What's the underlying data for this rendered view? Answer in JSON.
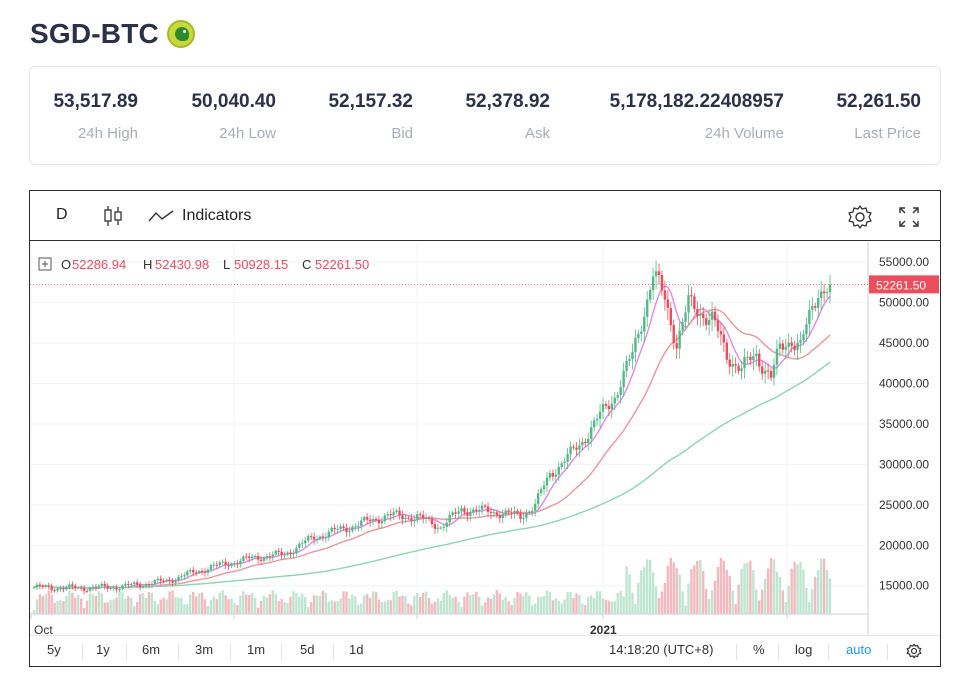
{
  "header": {
    "title": "SGD-BTC",
    "icon": "coin-logo-icon"
  },
  "stats": [
    {
      "value": "53,517.89",
      "label": "24h High"
    },
    {
      "value": "50,040.40",
      "label": "24h Low"
    },
    {
      "value": "52,157.32",
      "label": "Bid"
    },
    {
      "value": "52,378.92",
      "label": "Ask"
    },
    {
      "value": "5,178,182.22408957",
      "label": "24h Volume"
    },
    {
      "value": "52,261.50",
      "label": "Last Price"
    }
  ],
  "toolbar": {
    "interval": "D",
    "candle_icon": "candlestick-icon",
    "indicators_icon": "indicators-wave-icon",
    "indicators_label": "Indicators",
    "settings_icon": "gear-icon",
    "fullscreen_icon": "expand-icon"
  },
  "legend": {
    "o_label": "O",
    "o_value": "52286.94",
    "h_label": "H",
    "h_value": "52430.98",
    "l_label": "L",
    "l_value": "50928.15",
    "c_label": "C",
    "c_value": "52261.50"
  },
  "bottom_bar": {
    "ranges": [
      "5y",
      "1y",
      "6m",
      "3m",
      "1m",
      "5d",
      "1d"
    ],
    "time": "14:18:20",
    "timezone": "(UTC+8)",
    "percent_label": "%",
    "log_label": "log",
    "auto_label": "auto",
    "settings_icon": "gear-icon"
  },
  "colors": {
    "up": "#53b987",
    "down": "#eb4d5c",
    "ma_fast": "#e288e6",
    "ma_mid": "#e8979b",
    "ma_slow": "#8fd3b4",
    "price_tag": "#eb4d5c",
    "accent": "#2196f3"
  },
  "chart_data": {
    "type": "candlestick",
    "y_ticks": [
      "55000.00",
      "50000.00",
      "45000.00",
      "40000.00",
      "35000.00",
      "30000.00",
      "25000.00",
      "20000.00",
      "15000.00"
    ],
    "ylim": [
      11500,
      57500
    ],
    "x_labels": [
      "Oct",
      "2021"
    ],
    "last_price_label": "52261.50",
    "last_price": 52261.5,
    "grid": true,
    "series": [
      {
        "name": "",
        "type": "line",
        "key": "ma_fast"
      },
      {
        "name": "",
        "type": "line",
        "key": "ma_mid"
      },
      {
        "name": "",
        "type": "line",
        "key": "ma_slow"
      }
    ]
  }
}
